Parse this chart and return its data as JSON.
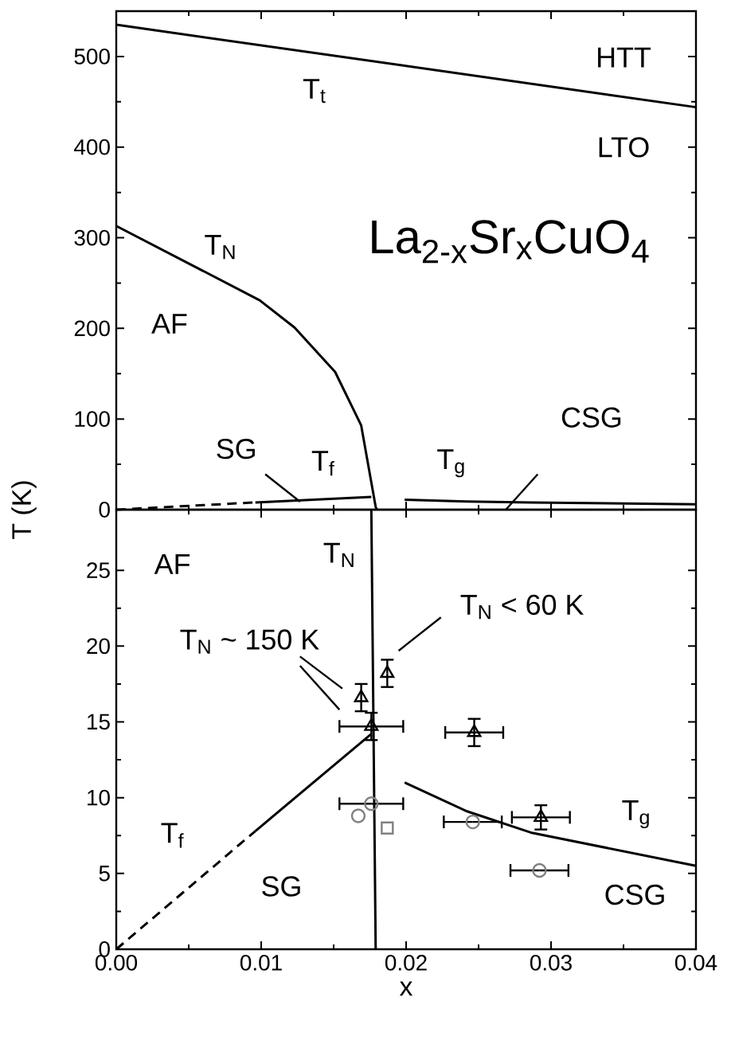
{
  "chart_data": [
    {
      "type": "line",
      "xlim": [
        0,
        0.04
      ],
      "ylim": [
        0,
        550
      ],
      "xticks": [
        0,
        0.01,
        0.02,
        0.03,
        0.04
      ],
      "yticks": [
        0,
        100,
        200,
        300,
        400,
        500
      ],
      "tick_labels": "y",
      "series": [
        {
          "x": [
            0,
            0.04
          ],
          "values": [
            535,
            444
          ],
          "color": "#000000",
          "line_style": "solid"
        },
        {
          "x": [
            0,
            0.0099,
            0.0123,
            0.0151,
            0.0169,
            0.0179,
            0.018
          ],
          "values": [
            313,
            231,
            201,
            152,
            93,
            3,
            0
          ],
          "color": "#000000",
          "line_style": "solid"
        },
        {
          "x": [
            0,
            0.0096
          ],
          "values": [
            0,
            8
          ],
          "color": "#000000",
          "line_style": "dashed"
        },
        {
          "x": [
            0.0096,
            0.0176
          ],
          "values": [
            8,
            14
          ],
          "color": "#000000",
          "line_style": "solid"
        },
        {
          "x": [
            0.0199,
            0.0242,
            0.0286,
            0.04
          ],
          "values": [
            11,
            9,
            8,
            6
          ],
          "color": "#000000",
          "line_style": "solid"
        }
      ],
      "annotations": [
        "HTT",
        "T$_{t}$",
        "LTO",
        "T$_{N}$",
        "La$_{2-x}$Sr$_{x}$CuO$_{4}$",
        "AF",
        "CSG",
        "SG",
        "T$_{f}$",
        "T$_{g}$"
      ]
    },
    {
      "type": "line",
      "xlim": [
        0,
        0.04
      ],
      "ylim": [
        0,
        29
      ],
      "xticks": [
        {
          "value": 0,
          "label": "0.00"
        },
        0.01,
        0.02,
        0.03,
        0.04
      ],
      "yticks": [
        0,
        5,
        10,
        15,
        20,
        25
      ],
      "xlabel": "x",
      "ylabel": "T (K)",
      "series": [
        {
          "x": [
            0.0176,
            0.0179
          ],
          "values": [
            29,
            0
          ],
          "color": "#000000",
          "line_style": "solid"
        },
        {
          "x": [
            0,
            0.0096
          ],
          "values": [
            0,
            7.8
          ],
          "color": "#000000",
          "line_style": "dashed"
        },
        {
          "x": [
            0.0096,
            0.0176
          ],
          "values": [
            7.8,
            14.2
          ],
          "color": "#000000",
          "line_style": "solid"
        },
        {
          "x": [
            0.0199,
            0.0242,
            0.0286,
            0.04
          ],
          "values": [
            11.0,
            9.1,
            7.7,
            5.5
          ],
          "color": "#000000",
          "line_style": "solid"
        },
        {
          "type": "scatter",
          "marker": "triangle",
          "color": "#000000",
          "x": [
            0.0169,
            0.0187,
            0.0176,
            0.0247,
            0.0293
          ],
          "values": [
            16.6,
            18.2,
            14.7,
            14.3,
            8.7
          ],
          "errors": [
            0.9,
            0.9,
            0.9,
            0.9,
            0.8
          ],
          "xerrors": [
            null,
            null,
            0.0022,
            0.002,
            0.002
          ]
        },
        {
          "type": "scatter",
          "marker": "circle",
          "color": "#808080",
          "x": [
            0.0176,
            0.0167,
            0.0246,
            0.0292
          ],
          "values": [
            9.6,
            8.8,
            8.4,
            5.2
          ],
          "xerrors": [
            0.0022,
            null,
            0.002,
            0.002
          ]
        },
        {
          "type": "scatter",
          "marker": "square",
          "color": "#808080",
          "x": [
            0.0187
          ],
          "values": [
            8.0
          ]
        }
      ],
      "annotations": [
        "AF",
        "T$_{N}$",
        "T$_{N}$ < 60 K",
        "T$_{N}$ ~ 150 K",
        "T$_{f}$",
        "SG",
        "T$_{g}$",
        "CSG"
      ]
    }
  ]
}
